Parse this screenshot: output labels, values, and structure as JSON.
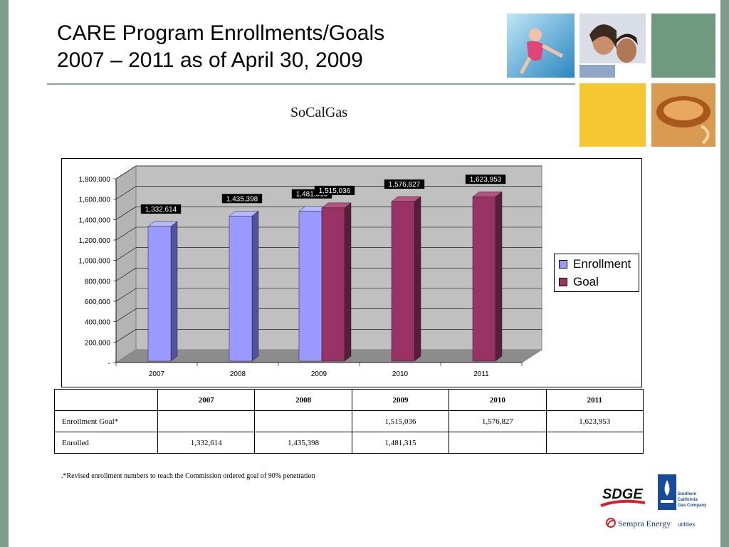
{
  "title_line1": "CARE Program Enrollments/Goals",
  "title_line2": "2007 – 2011 as of April 30, 2009",
  "subtitle": "SoCalGas",
  "colors": {
    "sidebar": "#7e9c8a",
    "enrollment": "#9999ff",
    "goal": "#993366",
    "yellow_tile": "#f7c731",
    "green_tile": "#6f9a80"
  },
  "chart_data": {
    "type": "bar",
    "categories": [
      "2007",
      "2008",
      "2009",
      "2010",
      "2011"
    ],
    "series": [
      {
        "name": "Enrollment",
        "values": [
          1332614,
          1435398,
          1481315,
          null,
          null
        ],
        "labels": [
          "1,332,614",
          "1,435,398",
          "1,481,315",
          "",
          ""
        ]
      },
      {
        "name": "Goal",
        "values": [
          null,
          null,
          1515036,
          1576827,
          1623953
        ],
        "labels": [
          "",
          "",
          "1,515,036",
          "1,576,827",
          "1,623,953"
        ]
      }
    ],
    "ylim": [
      0,
      1800000
    ],
    "yticks": [
      "-",
      "200,000",
      "400,000",
      "600,000",
      "800,000",
      "1,000,000",
      "1,200,000",
      "1,400,000",
      "1,600,000",
      "1,800,000"
    ],
    "legend_position": "right",
    "grid": true
  },
  "table": {
    "headers": [
      "",
      "2007",
      "2008",
      "2009",
      "2010",
      "2011"
    ],
    "rows": [
      [
        "Enrollment Goal*",
        "",
        "",
        "1,515,036",
        "1,576,827",
        "1,623,953"
      ],
      [
        "Enrolled",
        "1,332,614",
        "1,435,398",
        "1,481,315",
        "",
        ""
      ]
    ]
  },
  "footnote": ".*Revised enrollment numbers to reach the Commission ordered goal of 90% penetration",
  "logos": {
    "sdge": "SDGE",
    "socalgas": "Southern California Gas Company",
    "sempra": "Sempra Energy utilities"
  }
}
